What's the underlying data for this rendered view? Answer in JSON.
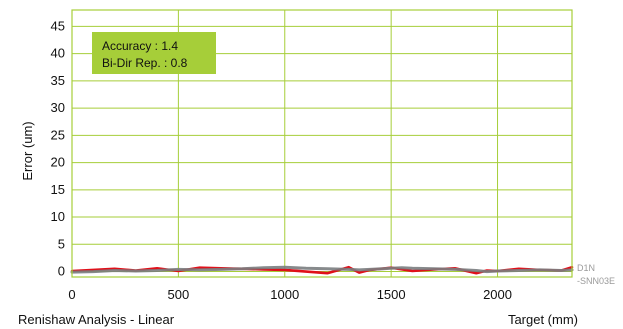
{
  "colors": {
    "accent": "#a6ce39",
    "series_red": "#e0101a",
    "series_gray": "#7a7d80",
    "side_label": "#9a9a9a"
  },
  "footer": {
    "left_text": "Renishaw Analysis - Linear"
  },
  "side_labels": [
    "D1N",
    "-SNN03E"
  ],
  "chart_data": {
    "type": "line",
    "title": "",
    "xlabel": "Target (mm)",
    "ylabel": "Error (um)",
    "xlim": [
      0,
      2350
    ],
    "ylim": [
      -1,
      48
    ],
    "x_ticks": [
      0,
      500,
      1000,
      1500,
      2000
    ],
    "y_ticks": [
      0,
      5,
      10,
      15,
      20,
      25,
      30,
      35,
      40,
      45
    ],
    "grid": true,
    "legend_position": "top-left",
    "annotations": [
      "Accuracy : 1.4",
      "Bi-Dir Rep. : 0.8"
    ],
    "x": [
      0,
      100,
      200,
      300,
      400,
      500,
      600,
      700,
      800,
      900,
      1000,
      1100,
      1200,
      1300,
      1350,
      1400,
      1500,
      1550,
      1600,
      1700,
      1800,
      1900,
      1950,
      2000,
      2100,
      2200,
      2300,
      2350
    ],
    "series": [
      {
        "color": "#e0101a",
        "values": [
          0.1,
          0.3,
          0.5,
          0.2,
          0.6,
          0.1,
          0.7,
          0.6,
          0.5,
          0.4,
          0.3,
          0.0,
          -0.3,
          0.8,
          -0.2,
          0.3,
          0.7,
          0.4,
          0.1,
          0.4,
          0.6,
          -0.3,
          0.2,
          0.1,
          0.5,
          0.3,
          0.2,
          0.8
        ]
      },
      {
        "color": "#7a7d80",
        "values": [
          -0.1,
          0.0,
          0.2,
          0.1,
          0.2,
          0.4,
          0.3,
          0.4,
          0.5,
          0.7,
          0.8,
          0.6,
          0.5,
          0.4,
          0.3,
          0.4,
          0.6,
          0.7,
          0.6,
          0.5,
          0.4,
          0.2,
          0.0,
          0.1,
          0.2,
          0.3,
          0.2,
          0.3
        ]
      }
    ]
  }
}
